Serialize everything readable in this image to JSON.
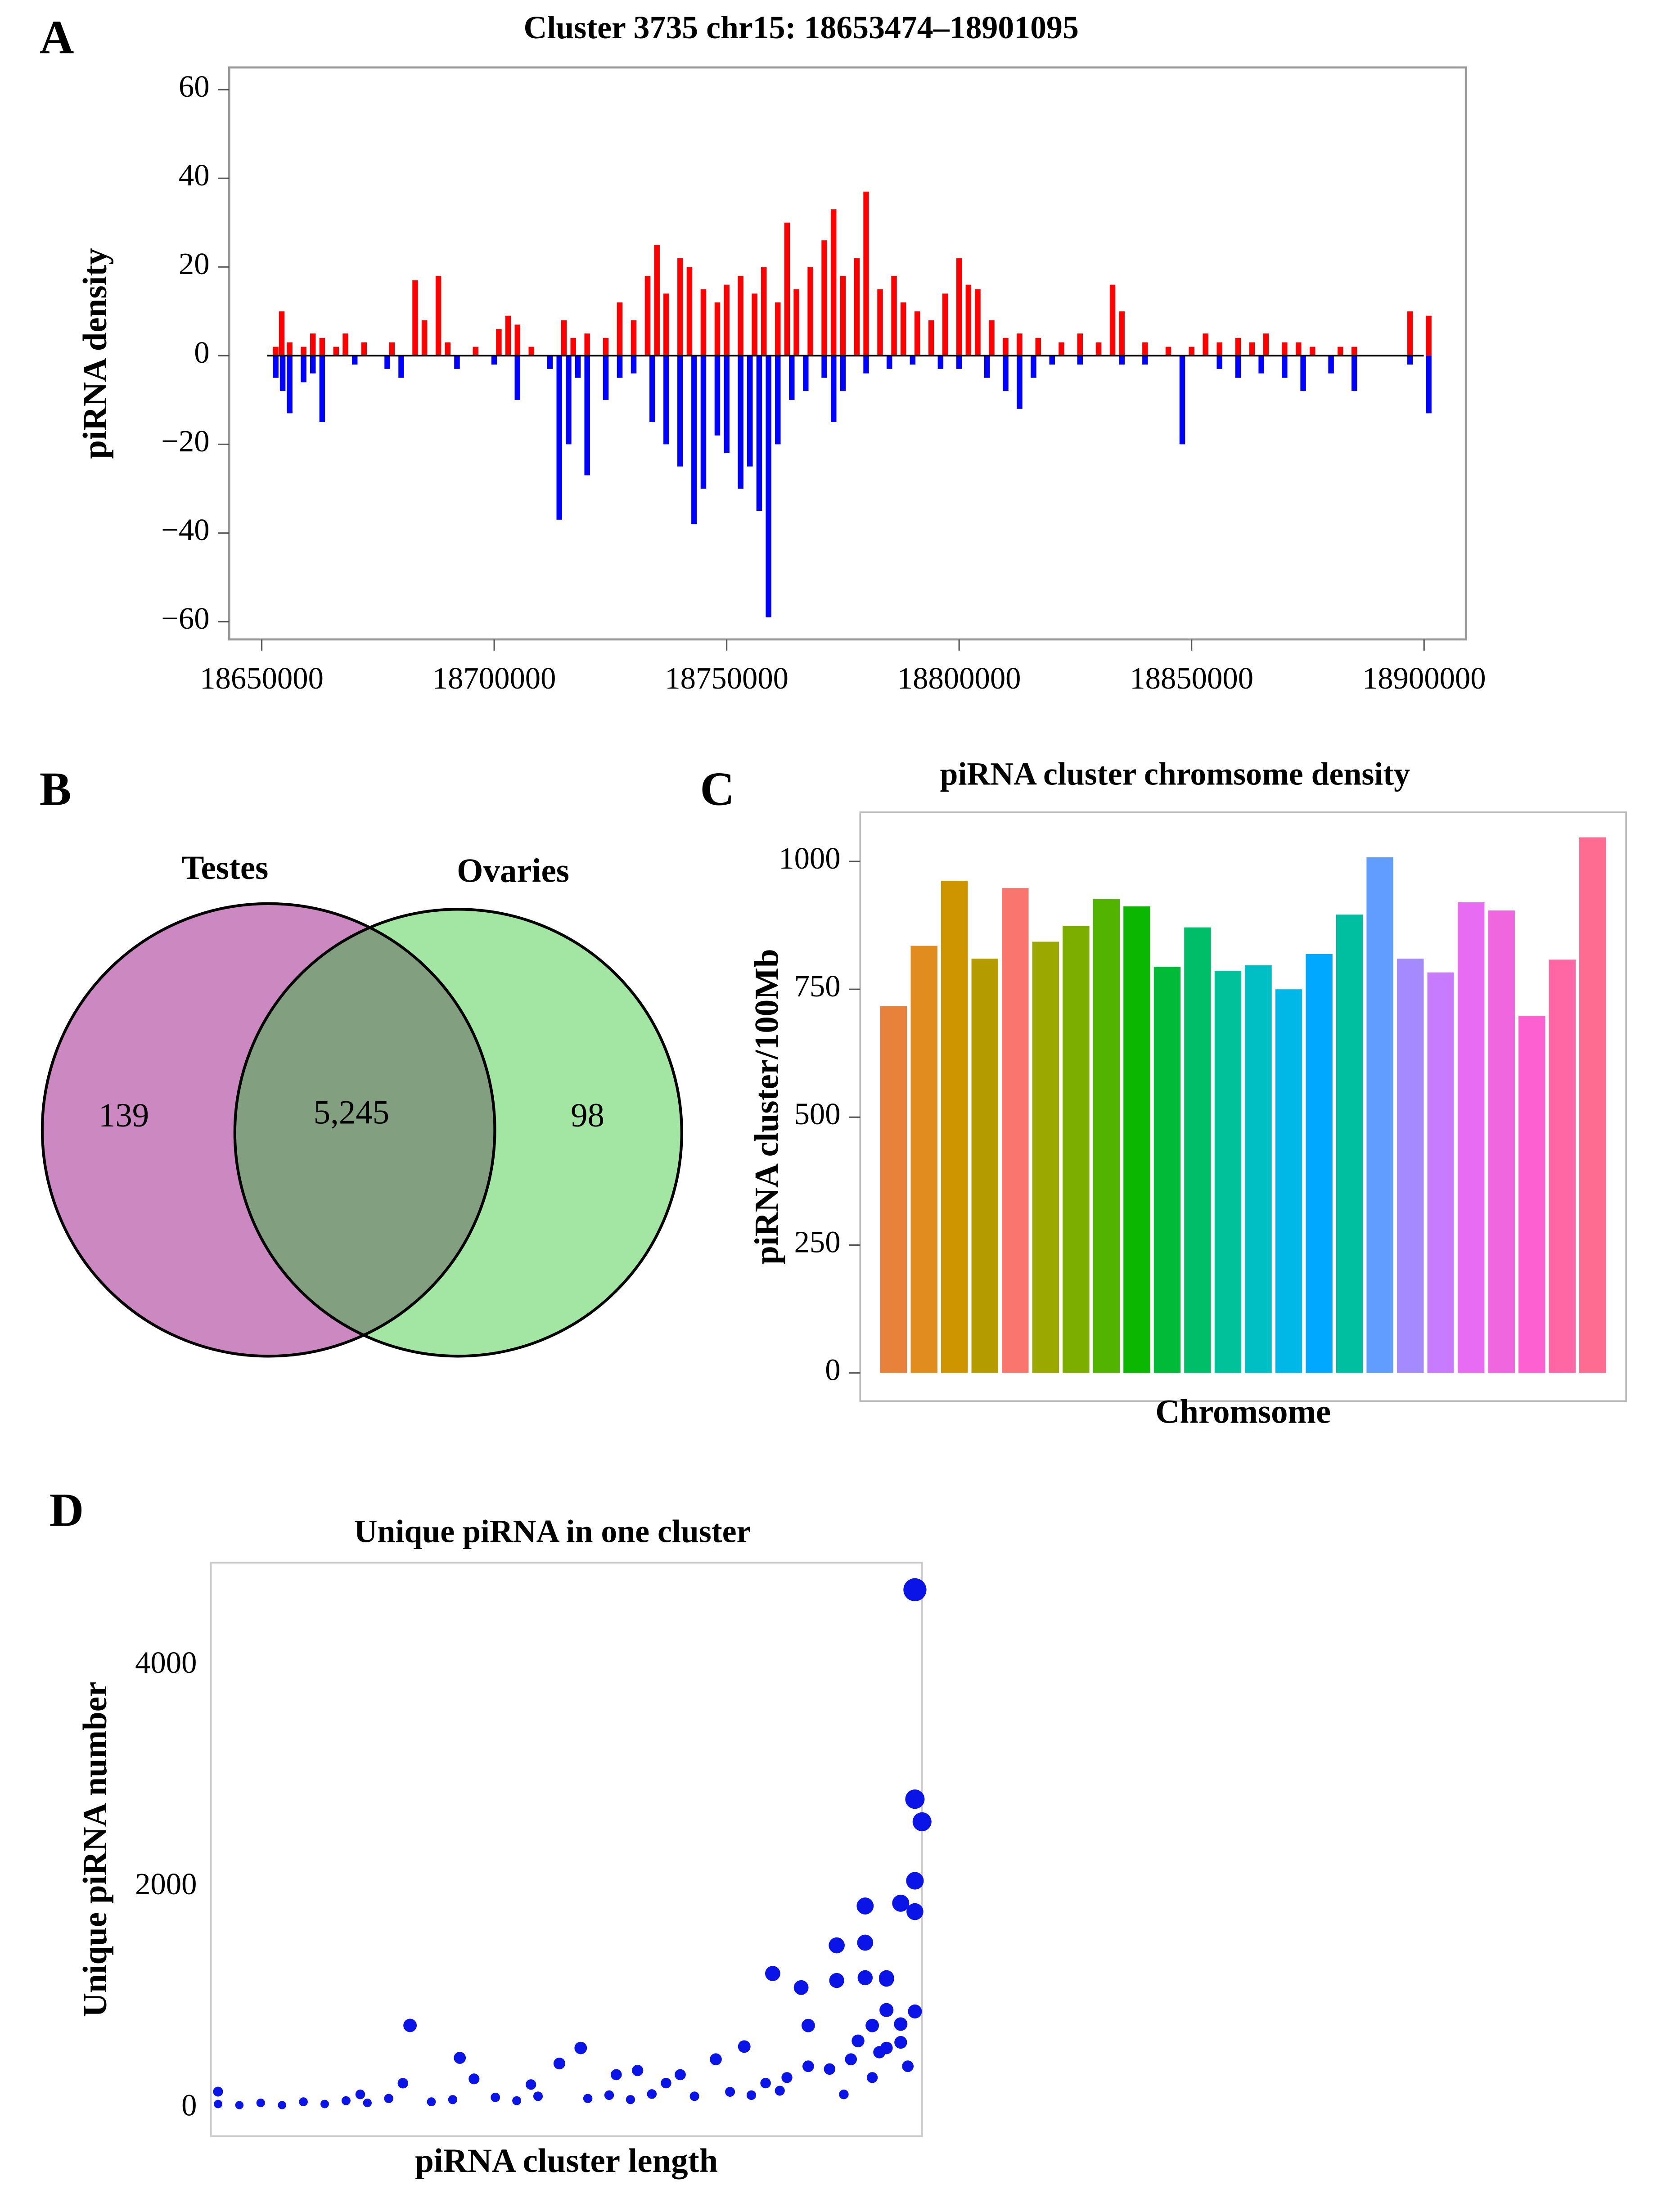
{
  "chart_data": [
    {
      "type": "strand_bar",
      "panel": "A",
      "title": "Cluster 3735 chr15: 18653474–18901095",
      "ylabel": "piRNA density",
      "xlim": [
        18643000,
        18909000
      ],
      "xticks": [
        18650000,
        18700000,
        18750000,
        18800000,
        18850000,
        18900000
      ],
      "ylim": [
        -64,
        65
      ],
      "yticks": [
        {
          "value": -60,
          "label": "−60"
        },
        {
          "value": -40,
          "label": "−40"
        },
        {
          "value": -20,
          "label": "−20"
        },
        0,
        20,
        40,
        60
      ],
      "series": [
        {
          "color": "#ff0000",
          "x": [
            18653000,
            18654300,
            18656000,
            18659000,
            18661000,
            18663000,
            18666000,
            18668000,
            18672000,
            18678000,
            18683000,
            18685000,
            18688000,
            18690000,
            18696000,
            18701000,
            18703000,
            18705000,
            18708000,
            18715000,
            18717000,
            18720000,
            18724000,
            18727000,
            18730000,
            18733000,
            18735000,
            18737000,
            18740000,
            18742000,
            18745000,
            18748000,
            18750000,
            18753000,
            18756000,
            18758000,
            18761000,
            18763000,
            18765000,
            18768000,
            18771000,
            18773000,
            18775000,
            18778000,
            18780000,
            18783000,
            18786000,
            18788000,
            18791000,
            18794000,
            18797000,
            18800000,
            18802000,
            18804000,
            18807000,
            18810000,
            18813000,
            18817000,
            18822000,
            18826000,
            18830000,
            18833000,
            18835000,
            18840000,
            18845000,
            18850000,
            18853000,
            18856000,
            18860000,
            18863000,
            18866000,
            18870000,
            18873000,
            18876000,
            18882000,
            18885000,
            18897000,
            18901000
          ],
          "values": [
            2,
            10,
            3,
            2,
            5,
            4,
            2,
            5,
            3,
            3,
            17,
            8,
            18,
            3,
            2,
            6,
            9,
            7,
            2,
            8,
            4,
            5,
            4,
            12,
            8,
            18,
            25,
            14,
            22,
            20,
            15,
            12,
            16,
            18,
            14,
            20,
            12,
            30,
            15,
            20,
            26,
            33,
            18,
            22,
            37,
            15,
            18,
            12,
            10,
            8,
            14,
            22,
            16,
            15,
            8,
            4,
            5,
            4,
            3,
            5,
            3,
            16,
            10,
            3,
            2,
            2,
            5,
            3,
            4,
            3,
            5,
            3,
            3,
            2,
            2,
            2,
            10,
            9
          ]
        },
        {
          "color": "#0000ff",
          "x": [
            18653000,
            18654500,
            18656000,
            18659000,
            18661000,
            18663000,
            18670000,
            18677000,
            18680000,
            18692000,
            18700000,
            18705000,
            18712000,
            18714000,
            18716000,
            18718000,
            18720000,
            18724000,
            18727000,
            18730000,
            18734000,
            18737000,
            18740000,
            18743000,
            18745000,
            18748000,
            18750000,
            18753000,
            18755000,
            18757000,
            18759000,
            18761000,
            18764000,
            18767000,
            18771000,
            18773000,
            18775000,
            18780000,
            18785000,
            18790000,
            18796000,
            18800000,
            18806000,
            18810000,
            18813000,
            18816000,
            18820000,
            18826000,
            18835000,
            18840000,
            18848000,
            18856000,
            18860000,
            18865000,
            18870000,
            18874000,
            18880000,
            18885000,
            18897000,
            18901000
          ],
          "values": [
            -5,
            -8,
            -13,
            -6,
            -4,
            -15,
            -2,
            -3,
            -5,
            -3,
            -2,
            -10,
            -3,
            -37,
            -20,
            -5,
            -27,
            -10,
            -5,
            -4,
            -15,
            -20,
            -25,
            -38,
            -30,
            -18,
            -22,
            -30,
            -25,
            -35,
            -59,
            -20,
            -10,
            -8,
            -5,
            -15,
            -8,
            -4,
            -3,
            -2,
            -3,
            -3,
            -5,
            -8,
            -12,
            -5,
            -2,
            -2,
            -2,
            -2,
            -20,
            -3,
            -5,
            -4,
            -5,
            -8,
            -4,
            -8,
            -2,
            -13
          ]
        }
      ]
    },
    {
      "type": "venn",
      "panel": "B",
      "sets": [
        "Testes",
        "Ovaries"
      ],
      "colors": [
        "#cc88c0",
        "#a3e6a3",
        "#829f80"
      ],
      "values": [
        139,
        5245,
        98
      ],
      "value_labels": [
        "139",
        "5,245",
        "98"
      ]
    },
    {
      "type": "bar",
      "panel": "C",
      "title": "piRNA cluster chromsome density",
      "ylabel": "piRNA cluster/100Mb",
      "xlabel": "Chromsome",
      "ylim": [
        -55,
        1096
      ],
      "yticks": [
        0,
        250,
        500,
        750,
        1000
      ],
      "values": [
        717,
        835,
        962,
        810,
        948,
        843,
        874,
        926,
        912,
        794,
        871,
        786,
        797,
        750,
        819,
        896,
        1008,
        810,
        783,
        920,
        904,
        698,
        808,
        1047
      ],
      "colors": [
        "#e8823a",
        "#e08c1e",
        "#cf9500",
        "#b39b00",
        "#f8766d",
        "#9aa800",
        "#7cae00",
        "#53b400",
        "#0cb702",
        "#00ba38",
        "#00be67",
        "#00c19a",
        "#00bfc4",
        "#00b8e7",
        "#00a9ff",
        "#00bfa0",
        "#619cff",
        "#a58aff",
        "#c77cff",
        "#e76bf3",
        "#f066de",
        "#fd61d1",
        "#ff67a4",
        "#ff6c91"
      ]
    },
    {
      "type": "scatter",
      "panel": "D",
      "title": "Unique piRNA  in one cluster",
      "ylabel": "Unique piRNA number",
      "xlabel": "piRNA cluster length",
      "color": "#0a14e6",
      "xlim": [
        0,
        100
      ],
      "ylim": [
        -250,
        4930
      ],
      "yticks": [
        0,
        2000,
        4000
      ],
      "x": [
        1,
        4,
        7,
        10,
        13,
        16,
        19,
        22,
        25,
        31,
        34,
        40,
        43,
        46,
        53,
        56,
        59,
        62,
        68,
        73,
        76,
        80,
        28,
        27,
        35,
        49,
        52,
        37,
        45,
        66,
        71,
        75,
        79,
        83,
        84,
        88,
        88,
        92,
        92,
        95,
        95,
        92,
        97,
        99,
        99,
        99,
        99,
        100,
        99,
        95,
        93,
        97,
        91,
        90,
        87,
        84,
        81,
        78,
        89,
        93,
        98,
        94,
        95,
        97,
        1,
        60,
        57,
        64,
        21
      ],
      "values": [
        40,
        30,
        50,
        30,
        60,
        40,
        70,
        50,
        90,
        60,
        80,
        100,
        70,
        110,
        90,
        120,
        80,
        130,
        110,
        150,
        120,
        160,
        750,
        228,
        457,
        406,
        546,
        267,
        216,
        305,
        444,
        559,
        1219,
        1092,
        749,
        1473,
        1156,
        1498,
        1181,
        1181,
        1168,
        1829,
        1854,
        2057,
        1778,
        876,
        2794,
        2590,
        4686,
        546,
        749,
        597,
        610,
        444,
        356,
        381,
        279,
        229,
        127,
        279,
        381,
        508,
        889,
        762,
        152,
        343,
        305,
        229,
        127
      ]
    }
  ]
}
